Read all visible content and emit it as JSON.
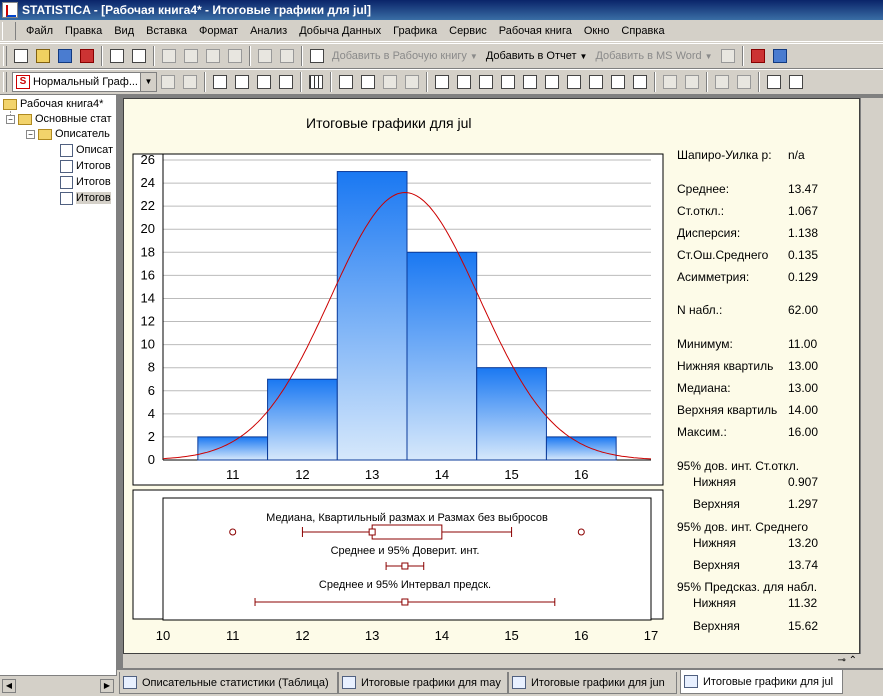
{
  "window": {
    "title": "STATISTICA - [Рабочая книга4* - Итоговые графики для jul]"
  },
  "menu": [
    "Файл",
    "Правка",
    "Вид",
    "Вставка",
    "Формат",
    "Анализ",
    "Добыча Данных",
    "Графика",
    "Сервис",
    "Рабочая книга",
    "Окно",
    "Справка"
  ],
  "toolbar1": {
    "add_workbook": "Добавить в Рабочую книгу",
    "add_report": "Добавить в Отчет",
    "add_msword": "Добавить в MS Word"
  },
  "toolbar2": {
    "graph_type": "Нормальный Граф..."
  },
  "tree": {
    "root": "Рабочая книга4*",
    "group": "Основные стат",
    "sub": "Описатель",
    "items": [
      "Описат",
      "Итогов",
      "Итогов",
      "Итогов"
    ]
  },
  "icons": [
    "new-icon",
    "open-icon",
    "save-icon",
    "pdf-icon",
    "print-icon",
    "print-preview-icon",
    "cut-icon",
    "copy-icon",
    "paste-icon",
    "format-painter-icon",
    "undo-icon",
    "redo-icon",
    "binoculars-icon",
    "book-icon",
    "help-icon"
  ],
  "graph": {
    "title": "Итоговые графики для jul",
    "box_labels": [
      "Медиана, Квартильный размах и Размах без выбросов",
      "Среднее и 95% Доверит. инт.",
      "Среднее и 95% Интервал предск."
    ]
  },
  "chart_data": [
    {
      "type": "bar",
      "title": "Итоговые графики для jul",
      "categories": [
        "11",
        "12",
        "13",
        "14",
        "15",
        "16"
      ],
      "values": [
        2,
        7,
        25,
        18,
        8,
        2
      ],
      "x_ticks": [
        11,
        12,
        13,
        14,
        15,
        16
      ],
      "y_ticks": [
        0,
        2,
        4,
        6,
        8,
        10,
        12,
        14,
        16,
        18,
        20,
        22,
        24,
        26
      ],
      "xlim": [
        10.0,
        17.0
      ],
      "ylim": [
        0,
        26
      ],
      "grid": true,
      "overlay": {
        "type": "normal-curve",
        "mean": 13.47,
        "sd": 1.067,
        "n": 62,
        "color": "#cc0000"
      },
      "bar_color": "#2a7fef"
    },
    {
      "type": "box",
      "x_ticks": [
        10,
        11,
        12,
        13,
        14,
        15,
        16,
        17
      ],
      "xlim": [
        10,
        17
      ],
      "boxplot": {
        "min": 11.0,
        "q1": 13.0,
        "median": 13.0,
        "q3": 14.0,
        "max": 16.0,
        "whisker_low": 12.0,
        "whisker_high": 15.0,
        "outliers": [
          11.0,
          16.0
        ]
      },
      "mean_ci": {
        "mean": 13.47,
        "low": 13.2,
        "high": 13.74
      },
      "mean_pi": {
        "mean": 13.47,
        "low": 11.32,
        "high": 15.62
      }
    }
  ],
  "stats": [
    {
      "label": "Шапиро-Уилка p:",
      "value": "n/a"
    },
    {
      "label": "Среднее:",
      "value": "13.47"
    },
    {
      "label": "Ст.откл.:",
      "value": "1.067"
    },
    {
      "label": "Дисперсия:",
      "value": "1.138"
    },
    {
      "label": "Ст.Ош.Среднего",
      "value": "0.135"
    },
    {
      "label": "Асимметрия:",
      "value": "0.129"
    },
    {
      "label": "N набл.:",
      "value": "62.00"
    },
    {
      "label": "Минимум:",
      "value": "11.00"
    },
    {
      "label": "Нижняя квартиль",
      "value": "13.00"
    },
    {
      "label": "Медиана:",
      "value": "13.00"
    },
    {
      "label": "Верхняя квартиль",
      "value": "14.00"
    },
    {
      "label": "Максим.:",
      "value": "16.00"
    }
  ],
  "ci": [
    {
      "header": "95% дов. инт. Ст.откл.",
      "rows": [
        {
          "label": "Нижняя",
          "value": "0.907"
        },
        {
          "label": "Верхняя",
          "value": "1.297"
        }
      ]
    },
    {
      "header": "95% дов. инт. Среднего",
      "rows": [
        {
          "label": "Нижняя",
          "value": "13.20"
        },
        {
          "label": "Верхняя",
          "value": "13.74"
        }
      ]
    },
    {
      "header": "95% Предсказ. для набл.",
      "rows": [
        {
          "label": "Нижняя",
          "value": "11.32"
        },
        {
          "label": "Верхняя",
          "value": "15.62"
        }
      ]
    }
  ],
  "tabs": [
    "Описательные статистики (Таблица)",
    "Итоговые графики для may",
    "Итоговые графики для jun",
    "Итоговые графики для jul"
  ]
}
